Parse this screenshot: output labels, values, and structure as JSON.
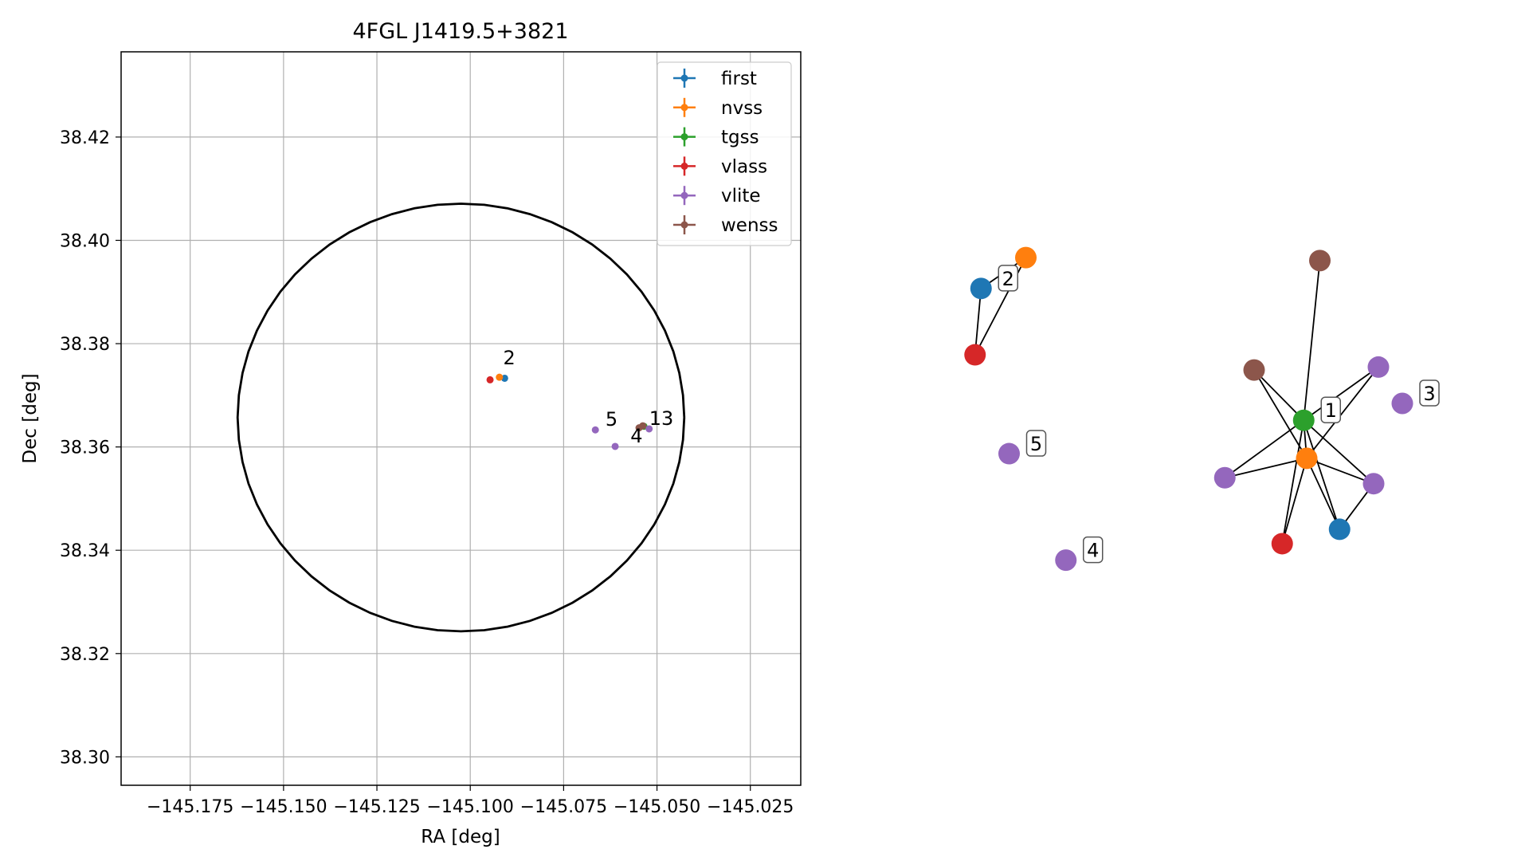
{
  "chart_data": [
    {
      "type": "scatter",
      "title": "4FGL J1419.5+3821",
      "xlabel": "RA [deg]",
      "ylabel": "Dec [deg]",
      "xlim": [
        -145.1935,
        -145.0115
      ],
      "ylim": [
        38.2945,
        38.4365
      ],
      "xticks": [
        -145.175,
        -145.15,
        -145.125,
        -145.1,
        -145.075,
        -145.05,
        -145.025
      ],
      "xtick_labels": [
        "−145.175",
        "−145.150",
        "−145.125",
        "−145.100",
        "−145.075",
        "−145.050",
        "−145.025"
      ],
      "yticks": [
        38.3,
        38.32,
        38.34,
        38.36,
        38.38,
        38.4,
        38.42
      ],
      "ytick_labels": [
        "38.30",
        "38.32",
        "38.34",
        "38.36",
        "38.38",
        "38.40",
        "38.42"
      ],
      "grid": true,
      "legend_position": "upper right",
      "circle": {
        "center": [
          -145.1025,
          38.3657
        ],
        "radius_ra": 0.0598,
        "radius_dec": 0.0414
      },
      "series": [
        {
          "name": "first",
          "color": "#1f77b4",
          "points": [
            {
              "x": -145.0908,
              "y": 38.3733
            }
          ]
        },
        {
          "name": "nvss",
          "color": "#ff7f0e",
          "points": [
            {
              "x": -145.0922,
              "y": 38.3735
            }
          ]
        },
        {
          "name": "tgss",
          "color": "#2ca02c",
          "points": [
            {
              "x": -145.0535,
              "y": 38.364
            }
          ]
        },
        {
          "name": "vlass",
          "color": "#d62728",
          "points": [
            {
              "x": -145.0947,
              "y": 38.373
            }
          ]
        },
        {
          "name": "vlite",
          "color": "#9467bd",
          "points": [
            {
              "x": -145.0665,
              "y": 38.3633
            },
            {
              "x": -145.0612,
              "y": 38.3601
            },
            {
              "x": -145.0521,
              "y": 38.3635
            }
          ]
        },
        {
          "name": "wenss",
          "color": "#8c564b",
          "points": [
            {
              "x": -145.0548,
              "y": 38.3637
            },
            {
              "x": -145.0538,
              "y": 38.3641
            }
          ]
        }
      ],
      "annotations": [
        {
          "text": "2",
          "x": -145.0912,
          "y": 38.376
        },
        {
          "text": "5",
          "x": -145.0638,
          "y": 38.3641
        },
        {
          "text": "4",
          "x": -145.0571,
          "y": 38.3609
        },
        {
          "text": "13",
          "x": -145.0521,
          "y": 38.3643
        }
      ]
    },
    {
      "type": "network",
      "nodes": [
        {
          "id": "c2-first",
          "color": "#1f77b4",
          "x": 0.215,
          "y": 0.789
        },
        {
          "id": "c2-nvss",
          "color": "#ff7f0e",
          "x": 0.29,
          "y": 0.862
        },
        {
          "id": "c2-vlass",
          "color": "#d62728",
          "x": 0.205,
          "y": 0.632
        },
        {
          "id": "c1-tgss",
          "color": "#2ca02c",
          "x": 0.755,
          "y": 0.477
        },
        {
          "id": "c1-nvss",
          "color": "#ff7f0e",
          "x": 0.76,
          "y": 0.387
        },
        {
          "id": "c1-first",
          "color": "#1f77b4",
          "x": 0.815,
          "y": 0.219
        },
        {
          "id": "c1-vlass",
          "color": "#d62728",
          "x": 0.719,
          "y": 0.185
        },
        {
          "id": "c1-wenss-top",
          "color": "#8c564b",
          "x": 0.782,
          "y": 0.855
        },
        {
          "id": "c1-wenss-left",
          "color": "#8c564b",
          "x": 0.672,
          "y": 0.596
        },
        {
          "id": "c1-vlite-tr",
          "color": "#9467bd",
          "x": 0.88,
          "y": 0.603
        },
        {
          "id": "c1-vlite-l",
          "color": "#9467bd",
          "x": 0.623,
          "y": 0.341
        },
        {
          "id": "c1-vlite-r",
          "color": "#9467bd",
          "x": 0.872,
          "y": 0.327
        },
        {
          "id": "c3-vlite",
          "color": "#9467bd",
          "x": 0.92,
          "y": 0.517
        },
        {
          "id": "c5-vlite",
          "color": "#9467bd",
          "x": 0.262,
          "y": 0.398
        },
        {
          "id": "c4-vlite",
          "color": "#9467bd",
          "x": 0.357,
          "y": 0.146
        }
      ],
      "edges": [
        [
          "c2-first",
          "c2-nvss"
        ],
        [
          "c2-first",
          "c2-vlass"
        ],
        [
          "c2-nvss",
          "c2-vlass"
        ],
        [
          "c1-tgss",
          "c1-nvss"
        ],
        [
          "c1-tgss",
          "c1-first"
        ],
        [
          "c1-tgss",
          "c1-vlass"
        ],
        [
          "c1-tgss",
          "c1-wenss-top"
        ],
        [
          "c1-tgss",
          "c1-wenss-left"
        ],
        [
          "c1-tgss",
          "c1-vlite-tr"
        ],
        [
          "c1-tgss",
          "c1-vlite-l"
        ],
        [
          "c1-tgss",
          "c1-vlite-r"
        ],
        [
          "c1-nvss",
          "c1-first"
        ],
        [
          "c1-nvss",
          "c1-vlass"
        ],
        [
          "c1-nvss",
          "c1-wenss-left"
        ],
        [
          "c1-nvss",
          "c1-vlite-tr"
        ],
        [
          "c1-nvss",
          "c1-vlite-l"
        ],
        [
          "c1-nvss",
          "c1-vlite-r"
        ],
        [
          "c1-first",
          "c1-vlite-r"
        ]
      ],
      "labels": [
        {
          "text": "2",
          "node": "c2-first"
        },
        {
          "text": "1",
          "node": "c1-tgss"
        },
        {
          "text": "3",
          "node": "c3-vlite"
        },
        {
          "text": "5",
          "node": "c5-vlite"
        },
        {
          "text": "4",
          "node": "c4-vlite"
        }
      ]
    }
  ]
}
